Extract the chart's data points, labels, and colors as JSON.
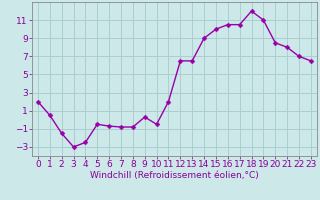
{
  "x": [
    0,
    1,
    2,
    3,
    4,
    5,
    6,
    7,
    8,
    9,
    10,
    11,
    12,
    13,
    14,
    15,
    16,
    17,
    18,
    19,
    20,
    21,
    22,
    23
  ],
  "y": [
    2,
    0.5,
    -1.5,
    -3,
    -2.5,
    -0.5,
    -0.7,
    -0.8,
    -0.8,
    0.3,
    -0.5,
    2,
    6.5,
    6.5,
    9,
    10,
    10.5,
    10.5,
    12,
    11,
    8.5,
    8,
    7,
    6.5
  ],
  "line_color": "#9900aa",
  "marker_color": "#9900aa",
  "bg_color": "#cce8e8",
  "grid_color": "#aacece",
  "xlabel": "Windchill (Refroidissement éolien,°C)",
  "ylim": [
    -4,
    13
  ],
  "xlim": [
    -0.5,
    23.5
  ],
  "yticks": [
    -3,
    -1,
    1,
    3,
    5,
    7,
    9,
    11
  ],
  "xticks": [
    0,
    1,
    2,
    3,
    4,
    5,
    6,
    7,
    8,
    9,
    10,
    11,
    12,
    13,
    14,
    15,
    16,
    17,
    18,
    19,
    20,
    21,
    22,
    23
  ],
  "font_color": "#880099",
  "font_size": 6.5,
  "line_width": 1.0,
  "marker_size": 2.5
}
